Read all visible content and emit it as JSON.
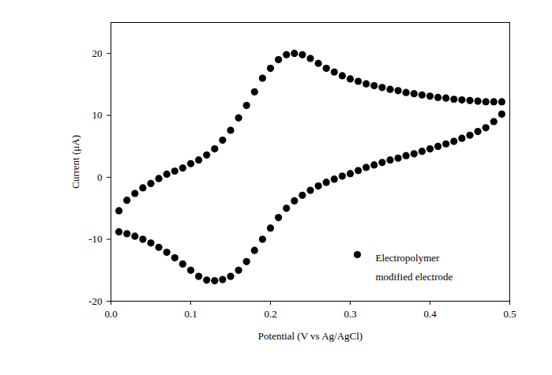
{
  "chart_data": {
    "type": "scatter",
    "x_label": "Potential (V vs Ag/AgCl)",
    "y_label": "Current (μA)",
    "x": [
      0.01,
      0.02,
      0.03,
      0.04,
      0.05,
      0.06,
      0.07,
      0.08,
      0.09,
      0.1,
      0.11,
      0.12,
      0.13,
      0.14,
      0.15,
      0.16,
      0.17,
      0.18,
      0.19,
      0.2,
      0.21,
      0.22,
      0.23,
      0.24,
      0.25,
      0.26,
      0.27,
      0.28,
      0.29,
      0.3,
      0.31,
      0.32,
      0.33,
      0.34,
      0.35,
      0.36,
      0.37,
      0.38,
      0.39,
      0.4,
      0.41,
      0.42,
      0.43,
      0.44,
      0.45,
      0.46,
      0.47,
      0.48,
      0.49,
      0.49,
      0.48,
      0.47,
      0.46,
      0.45,
      0.44,
      0.43,
      0.42,
      0.41,
      0.4,
      0.39,
      0.38,
      0.37,
      0.36,
      0.35,
      0.34,
      0.33,
      0.32,
      0.31,
      0.3,
      0.29,
      0.28,
      0.27,
      0.26,
      0.25,
      0.24,
      0.23,
      0.22,
      0.21,
      0.2,
      0.19,
      0.18,
      0.17,
      0.16,
      0.15,
      0.14,
      0.13,
      0.12,
      0.11,
      0.1,
      0.09,
      0.08,
      0.07,
      0.06,
      0.05,
      0.04,
      0.03,
      0.02,
      0.01
    ],
    "series": [
      {
        "name": "Electropolymer modified electrode",
        "color": "#000000",
        "marker": "circle",
        "values": [
          -5.4,
          -3.7,
          -2.6,
          -1.7,
          -1.0,
          -0.2,
          0.5,
          1.0,
          1.5,
          2.2,
          2.8,
          3.6,
          4.6,
          6.0,
          7.6,
          9.6,
          11.6,
          13.8,
          16.0,
          17.6,
          19.0,
          19.8,
          20.0,
          19.8,
          19.2,
          18.4,
          17.6,
          17.0,
          16.4,
          15.9,
          15.5,
          15.1,
          14.8,
          14.5,
          14.2,
          14.0,
          13.7,
          13.5,
          13.3,
          13.1,
          12.9,
          12.8,
          12.6,
          12.5,
          12.4,
          12.3,
          12.2,
          12.2,
          12.2,
          10.2,
          9.0,
          8.0,
          7.4,
          6.8,
          6.3,
          5.8,
          5.4,
          5.0,
          4.6,
          4.2,
          3.8,
          3.5,
          3.1,
          2.8,
          2.4,
          2.0,
          1.6,
          1.1,
          0.6,
          0.2,
          -0.3,
          -0.8,
          -1.4,
          -2.1,
          -2.9,
          -3.8,
          -5.0,
          -6.5,
          -8.2,
          -10.0,
          -11.8,
          -13.6,
          -15.0,
          -16.0,
          -16.5,
          -16.7,
          -16.6,
          -16.0,
          -15.0,
          -14.0,
          -13.0,
          -12.1,
          -11.3,
          -10.6,
          -10.0,
          -9.5,
          -9.1,
          -8.8
        ]
      }
    ],
    "xlim": [
      0,
      0.5
    ],
    "xticks": [
      {
        "value": 0,
        "label": "0.0"
      },
      0.1,
      0.2,
      0.3,
      0.4,
      0.5
    ],
    "ylim": [
      -20,
      25
    ],
    "yticks": [
      -20,
      -10,
      0,
      10,
      20
    ],
    "grid": false,
    "legend": "lower right"
  }
}
